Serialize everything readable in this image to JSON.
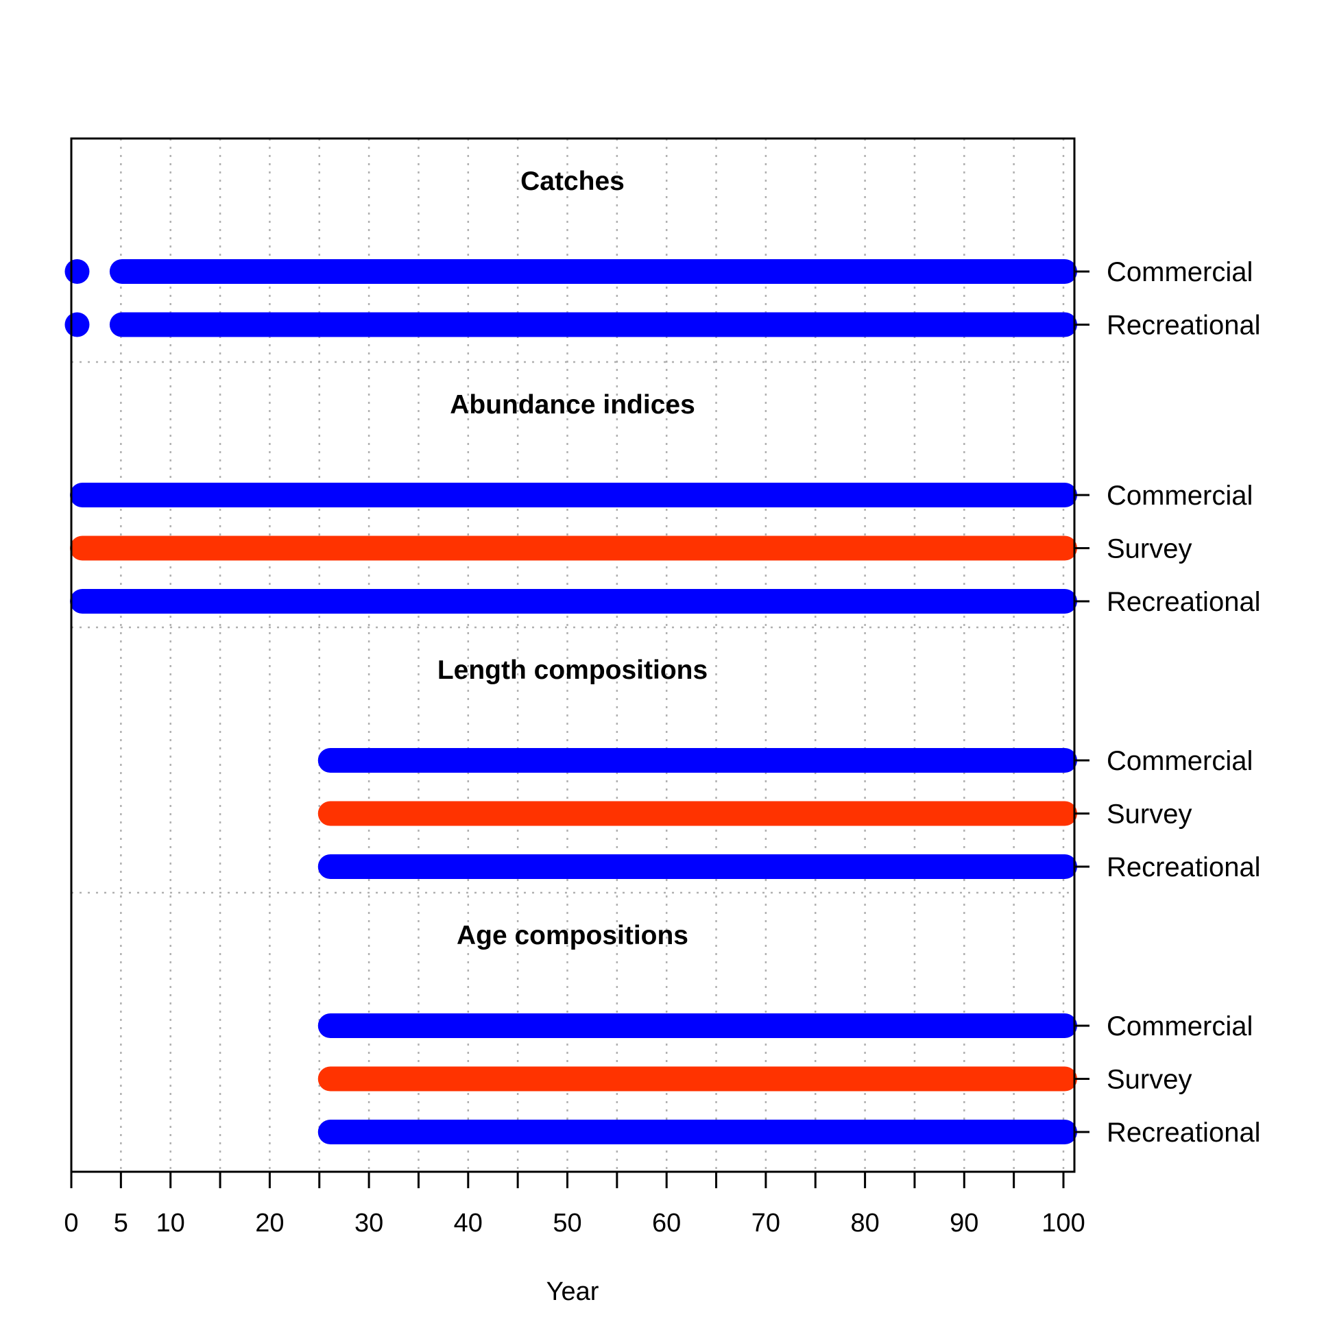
{
  "chart_data": {
    "type": "timeline",
    "xlabel": "Year",
    "xlim": [
      0,
      101
    ],
    "x_ticks": [
      0,
      5,
      10,
      20,
      30,
      40,
      50,
      60,
      70,
      80,
      90,
      100
    ],
    "x_minor_ticks": [
      15,
      25,
      35,
      45,
      55,
      65,
      75,
      85,
      95
    ],
    "grid": true,
    "colors": {
      "fishery": "#0000FF",
      "survey": "#FF3300"
    },
    "groups": [
      {
        "title": "Catches",
        "rows": [
          {
            "label": "Commercial",
            "color": "#0000FF",
            "years": [
              1,
              5,
              6,
              7,
              8,
              9,
              10,
              11,
              12,
              13,
              14,
              15,
              16,
              17,
              18,
              19,
              20,
              21,
              22,
              23,
              24,
              25,
              26,
              27,
              28,
              29,
              30,
              31,
              32,
              33,
              34,
              35,
              36,
              37,
              38,
              39,
              40,
              41,
              42,
              43,
              44,
              45,
              46,
              47,
              48,
              49,
              50,
              51,
              52,
              53,
              54,
              55,
              56,
              57,
              58,
              59,
              60,
              61,
              62,
              63,
              64,
              65,
              66,
              67,
              68,
              69,
              70,
              71,
              72,
              73,
              74,
              75,
              76,
              77,
              78,
              79,
              80,
              81,
              82,
              83,
              84,
              85,
              86,
              87,
              88,
              89,
              90,
              91,
              92,
              93,
              94,
              95,
              96,
              97,
              98,
              99,
              100
            ]
          },
          {
            "label": "Recreational",
            "color": "#0000FF",
            "years": [
              1,
              5,
              6,
              7,
              8,
              9,
              10,
              11,
              12,
              13,
              14,
              15,
              16,
              17,
              18,
              19,
              20,
              21,
              22,
              23,
              24,
              25,
              26,
              27,
              28,
              29,
              30,
              31,
              32,
              33,
              34,
              35,
              36,
              37,
              38,
              39,
              40,
              41,
              42,
              43,
              44,
              45,
              46,
              47,
              48,
              49,
              50,
              51,
              52,
              53,
              54,
              55,
              56,
              57,
              58,
              59,
              60,
              61,
              62,
              63,
              64,
              65,
              66,
              67,
              68,
              69,
              70,
              71,
              72,
              73,
              74,
              75,
              76,
              77,
              78,
              79,
              80,
              81,
              82,
              83,
              84,
              85,
              86,
              87,
              88,
              89,
              90,
              91,
              92,
              93,
              94,
              95,
              96,
              97,
              98,
              99,
              100
            ]
          }
        ]
      },
      {
        "title": "Abundance indices",
        "rows": [
          {
            "label": "Commercial",
            "color": "#0000FF",
            "years": [
              1,
              2,
              3,
              4,
              5,
              6,
              7,
              8,
              9,
              10,
              11,
              12,
              13,
              14,
              15,
              16,
              17,
              18,
              19,
              20,
              21,
              22,
              23,
              24,
              25,
              26,
              27,
              28,
              29,
              30,
              31,
              32,
              33,
              34,
              35,
              36,
              37,
              38,
              39,
              40,
              41,
              42,
              43,
              44,
              45,
              46,
              47,
              48,
              49,
              50,
              51,
              52,
              53,
              54,
              55,
              56,
              57,
              58,
              59,
              60,
              61,
              62,
              63,
              64,
              65,
              66,
              67,
              68,
              69,
              70,
              71,
              72,
              73,
              74,
              75,
              76,
              77,
              78,
              79,
              80,
              81,
              82,
              83,
              84,
              85,
              86,
              87,
              88,
              89,
              90,
              91,
              92,
              93,
              94,
              95,
              96,
              97,
              98,
              99,
              100
            ]
          },
          {
            "label": "Survey",
            "color": "#FF3300",
            "years": [
              1,
              2,
              3,
              4,
              5,
              6,
              7,
              8,
              9,
              10,
              11,
              12,
              13,
              14,
              15,
              16,
              17,
              18,
              19,
              20,
              21,
              22,
              23,
              24,
              25,
              26,
              27,
              28,
              29,
              30,
              31,
              32,
              33,
              34,
              35,
              36,
              37,
              38,
              39,
              40,
              41,
              42,
              43,
              44,
              45,
              46,
              47,
              48,
              49,
              50,
              51,
              52,
              53,
              54,
              55,
              56,
              57,
              58,
              59,
              60,
              61,
              62,
              63,
              64,
              65,
              66,
              67,
              68,
              69,
              70,
              71,
              72,
              73,
              74,
              75,
              76,
              77,
              78,
              79,
              80,
              81,
              82,
              83,
              84,
              85,
              86,
              87,
              88,
              89,
              90,
              91,
              92,
              93,
              94,
              95,
              96,
              97,
              98,
              99,
              100
            ]
          },
          {
            "label": "Recreational",
            "color": "#0000FF",
            "years": [
              1,
              2,
              3,
              4,
              5,
              6,
              7,
              8,
              9,
              10,
              11,
              12,
              13,
              14,
              15,
              16,
              17,
              18,
              19,
              20,
              21,
              22,
              23,
              24,
              25,
              26,
              27,
              28,
              29,
              30,
              31,
              32,
              33,
              34,
              35,
              36,
              37,
              38,
              39,
              40,
              41,
              42,
              43,
              44,
              45,
              46,
              47,
              48,
              49,
              50,
              51,
              52,
              53,
              54,
              55,
              56,
              57,
              58,
              59,
              60,
              61,
              62,
              63,
              64,
              65,
              66,
              67,
              68,
              69,
              70,
              71,
              72,
              73,
              74,
              75,
              76,
              77,
              78,
              79,
              80,
              81,
              82,
              83,
              84,
              85,
              86,
              87,
              88,
              89,
              90,
              91,
              92,
              93,
              94,
              95,
              96,
              97,
              98,
              99,
              100
            ]
          }
        ]
      },
      {
        "title": "Length compositions",
        "rows": [
          {
            "label": "Commercial",
            "color": "#0000FF",
            "years": [
              26,
              27,
              28,
              29,
              30,
              31,
              32,
              33,
              34,
              35,
              36,
              37,
              38,
              39,
              40,
              41,
              42,
              43,
              44,
              45,
              46,
              47,
              48,
              49,
              50,
              51,
              52,
              53,
              54,
              55,
              56,
              57,
              58,
              59,
              60,
              61,
              62,
              63,
              64,
              65,
              66,
              67,
              68,
              69,
              70,
              71,
              72,
              73,
              74,
              75,
              76,
              77,
              78,
              79,
              80,
              81,
              82,
              83,
              84,
              85,
              86,
              87,
              88,
              89,
              90,
              91,
              92,
              93,
              94,
              95,
              96,
              97,
              98,
              99,
              100
            ]
          },
          {
            "label": "Survey",
            "color": "#FF3300",
            "years": [
              26,
              27,
              28,
              29,
              30,
              31,
              32,
              33,
              34,
              35,
              36,
              37,
              38,
              39,
              40,
              41,
              42,
              43,
              44,
              45,
              46,
              47,
              48,
              49,
              50,
              51,
              52,
              53,
              54,
              55,
              56,
              57,
              58,
              59,
              60,
              61,
              62,
              63,
              64,
              65,
              66,
              67,
              68,
              69,
              70,
              71,
              72,
              73,
              74,
              75,
              76,
              77,
              78,
              79,
              80,
              81,
              82,
              83,
              84,
              85,
              86,
              87,
              88,
              89,
              90,
              91,
              92,
              93,
              94,
              95,
              96,
              97,
              98,
              99,
              100
            ]
          },
          {
            "label": "Recreational",
            "color": "#0000FF",
            "years": [
              26,
              27,
              28,
              29,
              30,
              31,
              32,
              33,
              34,
              35,
              36,
              37,
              38,
              39,
              40,
              41,
              42,
              43,
              44,
              45,
              46,
              47,
              48,
              49,
              50,
              51,
              52,
              53,
              54,
              55,
              56,
              57,
              58,
              59,
              60,
              61,
              62,
              63,
              64,
              65,
              66,
              67,
              68,
              69,
              70,
              71,
              72,
              73,
              74,
              75,
              76,
              77,
              78,
              79,
              80,
              81,
              82,
              83,
              84,
              85,
              86,
              87,
              88,
              89,
              90,
              91,
              92,
              93,
              94,
              95,
              96,
              97,
              98,
              99,
              100
            ]
          }
        ]
      },
      {
        "title": "Age compositions",
        "rows": [
          {
            "label": "Commercial",
            "color": "#0000FF",
            "years": [
              26,
              27,
              28,
              29,
              30,
              31,
              32,
              33,
              34,
              35,
              36,
              37,
              38,
              39,
              40,
              41,
              42,
              43,
              44,
              45,
              46,
              47,
              48,
              49,
              50,
              51,
              52,
              53,
              54,
              55,
              56,
              57,
              58,
              59,
              60,
              61,
              62,
              63,
              64,
              65,
              66,
              67,
              68,
              69,
              70,
              71,
              72,
              73,
              74,
              75,
              76,
              77,
              78,
              79,
              80,
              81,
              82,
              83,
              84,
              85,
              86,
              87,
              88,
              89,
              90,
              91,
              92,
              93,
              94,
              95,
              96,
              97,
              98,
              99,
              100
            ]
          },
          {
            "label": "Survey",
            "color": "#FF3300",
            "years": [
              26,
              27,
              28,
              29,
              30,
              31,
              32,
              33,
              34,
              35,
              36,
              37,
              38,
              39,
              40,
              41,
              42,
              43,
              44,
              45,
              46,
              47,
              48,
              49,
              50,
              51,
              52,
              53,
              54,
              55,
              56,
              57,
              58,
              59,
              60,
              61,
              62,
              63,
              64,
              65,
              66,
              67,
              68,
              69,
              70,
              71,
              72,
              73,
              74,
              75,
              76,
              77,
              78,
              79,
              80,
              81,
              82,
              83,
              84,
              85,
              86,
              87,
              88,
              89,
              90,
              91,
              92,
              93,
              94,
              95,
              96,
              97,
              98,
              99,
              100
            ]
          },
          {
            "label": "Recreational",
            "color": "#0000FF",
            "years": [
              26,
              27,
              28,
              29,
              30,
              31,
              32,
              33,
              34,
              35,
              36,
              37,
              38,
              39,
              40,
              41,
              42,
              43,
              44,
              45,
              46,
              47,
              48,
              49,
              50,
              51,
              52,
              53,
              54,
              55,
              56,
              57,
              58,
              59,
              60,
              61,
              62,
              63,
              64,
              65,
              66,
              67,
              68,
              69,
              70,
              71,
              72,
              73,
              74,
              75,
              76,
              77,
              78,
              79,
              80,
              81,
              82,
              83,
              84,
              85,
              86,
              87,
              88,
              89,
              90,
              91,
              92,
              93,
              94,
              95,
              96,
              97,
              98,
              99,
              100
            ]
          }
        ]
      }
    ]
  }
}
